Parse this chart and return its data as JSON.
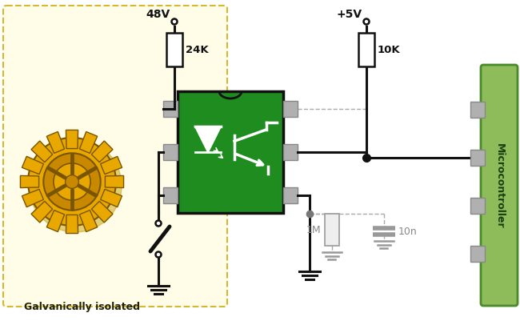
{
  "bg_color": "#ffffff",
  "yellow_color": "#fffde8",
  "yellow_edge": "#d4b830",
  "galvanic_text": "Galvanically isolated",
  "mc_color": "#8fbc5a",
  "mc_edge": "#4a8a2a",
  "mc_text_color": "#1a4010",
  "v48": "48V",
  "v5": "+5V",
  "r24k": "24K",
  "r10k": "10K",
  "r1m": "1M",
  "c10n": "10n",
  "green_ic_color": "#1e8c1e",
  "green_ic_edge": "#111111",
  "ic_pin_color": "#b0b0b0",
  "ic_pin_edge": "#888888",
  "wire_color": "#111111",
  "wire_lw": 2.2,
  "dashed_color": "#aaaaaa",
  "dashed_lw": 1.0,
  "res_fill": "#ffffff",
  "res_edge": "#111111",
  "gear_color_outer": "#e8a800",
  "gear_color_mid": "#c88800",
  "gear_color_inner": "#e8a800",
  "gear_edge": "#7a5500",
  "gray_component_color": "#cccccc",
  "gray_component_edge": "#999999",
  "gray_wire_color": "#999999",
  "gray_text_color": "#888888",
  "ground_color": "#111111"
}
